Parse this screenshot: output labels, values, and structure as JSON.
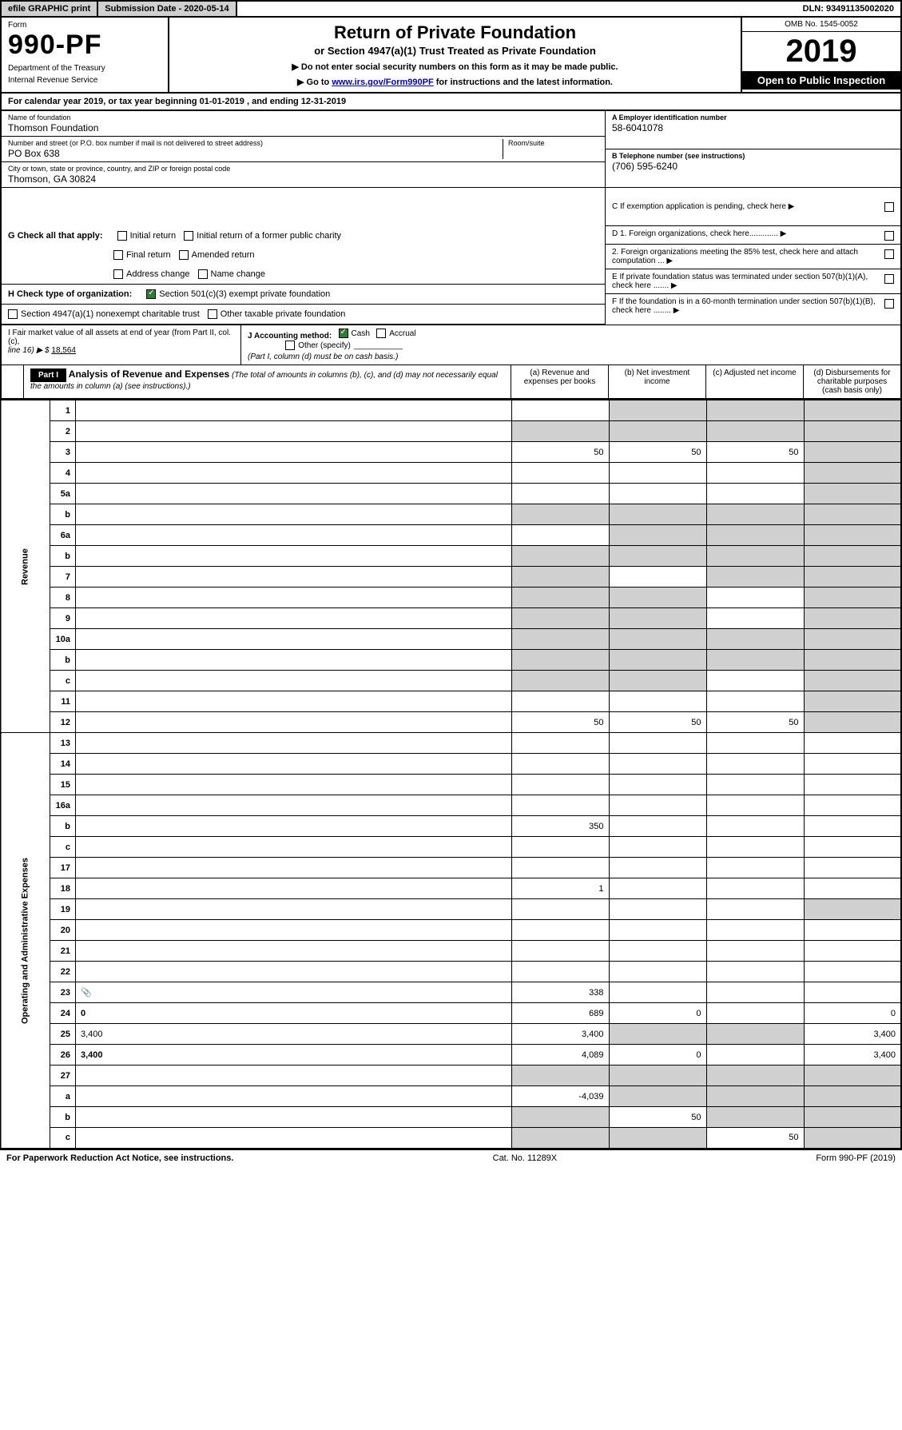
{
  "topbar": {
    "efile": "efile GRAPHIC print",
    "submission_label": "Submission Date - 2020-05-14",
    "dln": "DLN: 93491135002020"
  },
  "header": {
    "form_label": "Form",
    "form_number": "990-PF",
    "dept1": "Department of the Treasury",
    "dept2": "Internal Revenue Service",
    "title": "Return of Private Foundation",
    "subtitle": "or Section 4947(a)(1) Trust Treated as Private Foundation",
    "note1": "▶ Do not enter social security numbers on this form as it may be made public.",
    "note2_pre": "▶ Go to ",
    "note2_link": "www.irs.gov/Form990PF",
    "note2_post": " for instructions and the latest information.",
    "omb": "OMB No. 1545-0052",
    "year": "2019",
    "open": "Open to Public Inspection"
  },
  "cal_year": "For calendar year 2019, or tax year beginning 01-01-2019                          , and ending 12-31-2019",
  "entity": {
    "name_label": "Name of foundation",
    "name": "Thomson Foundation",
    "addr_label": "Number and street (or P.O. box number if mail is not delivered to street address)",
    "addr": "PO Box 638",
    "room_label": "Room/suite",
    "city_label": "City or town, state or province, country, and ZIP or foreign postal code",
    "city": "Thomson, GA  30824",
    "ein_label": "A Employer identification number",
    "ein": "58-6041078",
    "tel_label": "B Telephone number (see instructions)",
    "tel": "(706) 595-6240",
    "c_label": "C  If exemption application is pending, check here ▶"
  },
  "g": {
    "lead": "G Check all that apply:",
    "o1": "Initial return",
    "o2": "Initial return of a former public charity",
    "o3": "Final return",
    "o4": "Amended return",
    "o5": "Address change",
    "o6": "Name change"
  },
  "h": {
    "lead": "H Check type of organization:",
    "o1": "Section 501(c)(3) exempt private foundation",
    "o2": "Section 4947(a)(1) nonexempt charitable trust",
    "o3": "Other taxable private foundation"
  },
  "d": {
    "d1": "D 1. Foreign organizations, check here.............  ▶",
    "d2": "2. Foreign organizations meeting the 85% test, check here and attach computation ...  ▶",
    "e": "E  If private foundation status was terminated under section 507(b)(1)(A), check here .......  ▶",
    "f": "F  If the foundation is in a 60-month termination under section 507(b)(1)(B), check here ........  ▶"
  },
  "i": {
    "label": "I Fair market value of all assets at end of year (from Part II, col. (c),",
    "line16": "line 16) ▶ $",
    "val": "18,564"
  },
  "j": {
    "label": "J Accounting method:",
    "o1": "Cash",
    "o2": "Accrual",
    "o3": "Other (specify)",
    "note": "(Part I, column (d) must be on cash basis.)"
  },
  "part1": {
    "tag": "Part I",
    "title": "Analysis of Revenue and Expenses",
    "note": "(The total of amounts in columns (b), (c), and (d) may not necessarily equal the amounts in column (a) (see instructions).)",
    "col_a": "(a)   Revenue and expenses per books",
    "col_b": "(b)  Net investment income",
    "col_c": "(c)  Adjusted net income",
    "col_d": "(d)  Disbursements for charitable purposes (cash basis only)"
  },
  "side": {
    "revenue": "Revenue",
    "expenses": "Operating and Administrative Expenses"
  },
  "rows": [
    {
      "n": "1",
      "d": "",
      "a": "",
      "b": "",
      "c": "",
      "sb": true,
      "sc": true,
      "sd": true
    },
    {
      "n": "2",
      "d": "",
      "a": "",
      "b": "",
      "c": "",
      "sa": true,
      "sb": true,
      "sc": true,
      "sd": true
    },
    {
      "n": "3",
      "d": "",
      "a": "50",
      "b": "50",
      "c": "50",
      "sd": true
    },
    {
      "n": "4",
      "d": "",
      "a": "",
      "b": "",
      "c": "",
      "sd": true
    },
    {
      "n": "5a",
      "d": "",
      "a": "",
      "b": "",
      "c": "",
      "sd": true
    },
    {
      "n": "b",
      "d": "",
      "a": "",
      "b": "",
      "c": "",
      "sa": true,
      "sb": true,
      "sc": true,
      "sd": true
    },
    {
      "n": "6a",
      "d": "",
      "a": "",
      "b": "",
      "c": "",
      "sb": true,
      "sc": true,
      "sd": true
    },
    {
      "n": "b",
      "d": "",
      "a": "",
      "b": "",
      "c": "",
      "sa": true,
      "sb": true,
      "sc": true,
      "sd": true
    },
    {
      "n": "7",
      "d": "",
      "a": "",
      "b": "",
      "c": "",
      "sa": true,
      "sc": true,
      "sd": true
    },
    {
      "n": "8",
      "d": "",
      "a": "",
      "b": "",
      "c": "",
      "sa": true,
      "sb": true,
      "sd": true
    },
    {
      "n": "9",
      "d": "",
      "a": "",
      "b": "",
      "c": "",
      "sa": true,
      "sb": true,
      "sd": true
    },
    {
      "n": "10a",
      "d": "",
      "a": "",
      "b": "",
      "c": "",
      "sa": true,
      "sb": true,
      "sc": true,
      "sd": true
    },
    {
      "n": "b",
      "d": "",
      "a": "",
      "b": "",
      "c": "",
      "sa": true,
      "sb": true,
      "sc": true,
      "sd": true
    },
    {
      "n": "c",
      "d": "",
      "a": "",
      "b": "",
      "c": "",
      "sa": true,
      "sb": true,
      "sd": true
    },
    {
      "n": "11",
      "d": "",
      "a": "",
      "b": "",
      "c": "",
      "sd": true
    },
    {
      "n": "12",
      "d": "",
      "a": "50",
      "b": "50",
      "c": "50",
      "bold": true,
      "sd": true
    },
    {
      "n": "13",
      "d": "",
      "a": "",
      "b": "",
      "c": ""
    },
    {
      "n": "14",
      "d": "",
      "a": "",
      "b": "",
      "c": ""
    },
    {
      "n": "15",
      "d": "",
      "a": "",
      "b": "",
      "c": ""
    },
    {
      "n": "16a",
      "d": "",
      "a": "",
      "b": "",
      "c": ""
    },
    {
      "n": "b",
      "d": "",
      "a": "350",
      "b": "",
      "c": ""
    },
    {
      "n": "c",
      "d": "",
      "a": "",
      "b": "",
      "c": ""
    },
    {
      "n": "17",
      "d": "",
      "a": "",
      "b": "",
      "c": ""
    },
    {
      "n": "18",
      "d": "",
      "a": "1",
      "b": "",
      "c": ""
    },
    {
      "n": "19",
      "d": "",
      "a": "",
      "b": "",
      "c": "",
      "sd": true
    },
    {
      "n": "20",
      "d": "",
      "a": "",
      "b": "",
      "c": ""
    },
    {
      "n": "21",
      "d": "",
      "a": "",
      "b": "",
      "c": ""
    },
    {
      "n": "22",
      "d": "",
      "a": "",
      "b": "",
      "c": ""
    },
    {
      "n": "23",
      "d": "",
      "a": "338",
      "b": "",
      "c": "",
      "icon": true
    },
    {
      "n": "24",
      "d": "0",
      "a": "689",
      "b": "0",
      "c": "",
      "bold": true
    },
    {
      "n": "25",
      "d": "3,400",
      "a": "3,400",
      "b": "",
      "c": "",
      "sb": true,
      "sc": true
    },
    {
      "n": "26",
      "d": "3,400",
      "a": "4,089",
      "b": "0",
      "c": "",
      "bold": true
    },
    {
      "n": "27",
      "d": "",
      "a": "",
      "b": "",
      "c": "",
      "sa": true,
      "sb": true,
      "sc": true,
      "sd": true
    },
    {
      "n": "a",
      "d": "",
      "a": "-4,039",
      "b": "",
      "c": "",
      "bold": true,
      "sb": true,
      "sc": true,
      "sd": true
    },
    {
      "n": "b",
      "d": "",
      "a": "",
      "b": "50",
      "c": "",
      "bold": true,
      "sa": true,
      "sc": true,
      "sd": true
    },
    {
      "n": "c",
      "d": "",
      "a": "",
      "b": "",
      "c": "50",
      "bold": true,
      "sa": true,
      "sb": true,
      "sd": true
    }
  ],
  "footer": {
    "left": "For Paperwork Reduction Act Notice, see instructions.",
    "mid": "Cat. No. 11289X",
    "right": "Form 990-PF (2019)"
  },
  "colors": {
    "black": "#000000",
    "grey": "#d0d0d0",
    "link": "#0000cc",
    "check_green": "#2e7d32"
  }
}
